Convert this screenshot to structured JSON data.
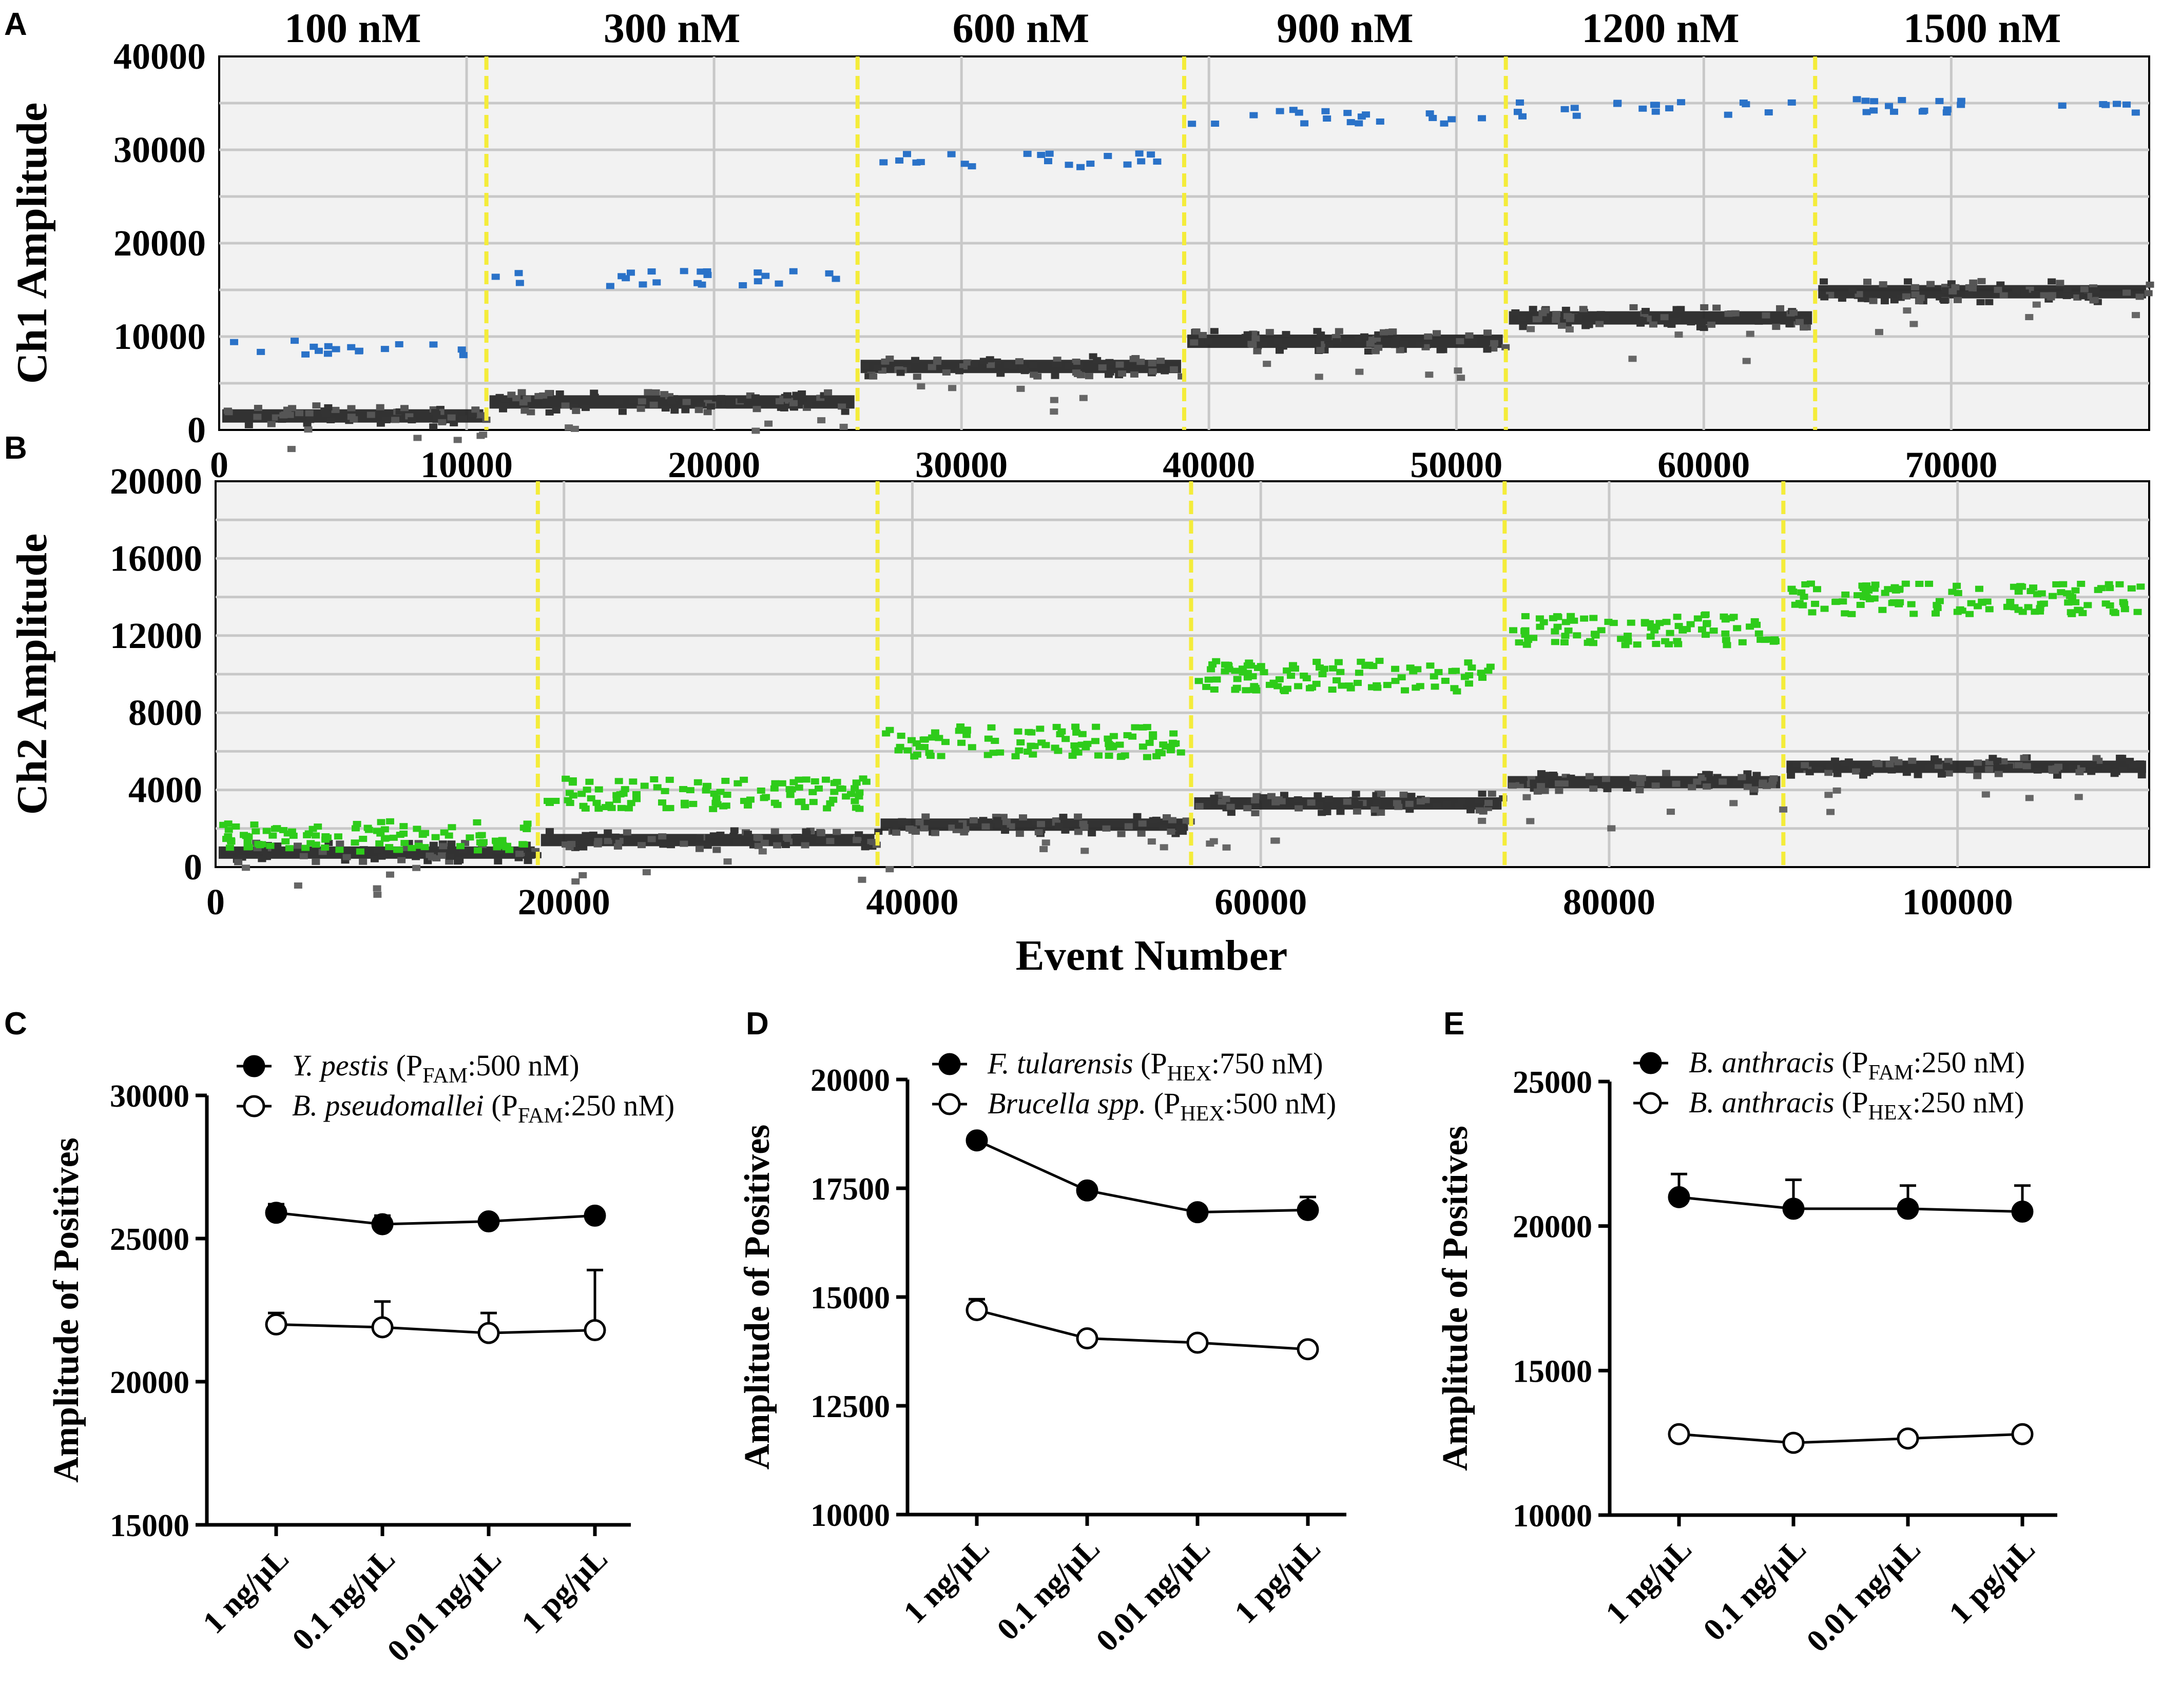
{
  "chart_data": [
    {
      "id": "A",
      "panel_label": "A",
      "type": "scatter",
      "ylabel": "Ch1 Amplitude",
      "xlim": [
        0,
        78000
      ],
      "ylim": [
        0,
        40000
      ],
      "x_ticks": [
        0,
        10000,
        20000,
        30000,
        40000,
        50000,
        60000,
        70000
      ],
      "y_ticks": [
        0,
        10000,
        20000,
        30000,
        40000
      ],
      "dividers": [
        10800,
        25800,
        39000,
        52000,
        64500
      ],
      "segment_titles": [
        "100 nM",
        "300 nM",
        "600 nM",
        "900 nM",
        "1200 nM",
        "1500 nM"
      ],
      "segments": [
        {
          "x_start": 0,
          "x_end": 10800,
          "positive": 8800,
          "negative": 1500
        },
        {
          "x_start": 10800,
          "x_end": 25800,
          "positive": 16200,
          "negative": 3000
        },
        {
          "x_start": 25800,
          "x_end": 39000,
          "positive": 28800,
          "negative": 6800
        },
        {
          "x_start": 39000,
          "x_end": 52000,
          "positive": 33500,
          "negative": 9500
        },
        {
          "x_start": 52000,
          "x_end": 64500,
          "positive": 34300,
          "negative": 12000
        },
        {
          "x_start": 64500,
          "x_end": 78000,
          "positive": 34600,
          "negative": 14800
        }
      ],
      "positive_color": "#2a72c8",
      "negative_color": "#222222"
    },
    {
      "id": "B",
      "panel_label": "B",
      "type": "scatter",
      "ylabel": "Ch2 Amplitude",
      "xlabel": "Event Number",
      "xlim": [
        0,
        111000
      ],
      "ylim": [
        0,
        20000
      ],
      "x_ticks": [
        0,
        20000,
        40000,
        60000,
        80000,
        100000
      ],
      "y_ticks": [
        0,
        4000,
        8000,
        12000,
        16000,
        20000
      ],
      "dividers": [
        18500,
        38000,
        56000,
        74000,
        90000
      ],
      "segments": [
        {
          "x_start": 0,
          "x_end": 18500,
          "positive": 1600,
          "negative": 750
        },
        {
          "x_start": 18500,
          "x_end": 38000,
          "positive": 3800,
          "negative": 1400
        },
        {
          "x_start": 38000,
          "x_end": 56000,
          "positive": 6500,
          "negative": 2200
        },
        {
          "x_start": 56000,
          "x_end": 74000,
          "positive": 9900,
          "negative": 3300
        },
        {
          "x_start": 74000,
          "x_end": 90000,
          "positive": 12300,
          "negative": 4400
        },
        {
          "x_start": 90000,
          "x_end": 111000,
          "positive": 13900,
          "negative": 5200
        }
      ],
      "positive_color": "#2ecc1a",
      "negative_color": "#222222"
    },
    {
      "id": "C",
      "panel_label": "C",
      "type": "line",
      "ylabel": "Amplitude of Positives",
      "categories": [
        "1 ng/μL",
        "0.1 ng/μL",
        "0.01 ng/μL",
        "1 pg/μL"
      ],
      "ylim": [
        15000,
        30000
      ],
      "y_ticks": [
        15000,
        20000,
        25000,
        30000
      ],
      "series": [
        {
          "name": "Y. pestis",
          "probe": "P",
          "probe_sub": "FAM",
          "conc": ":500 nM)",
          "filled": true,
          "values": [
            25900,
            25500,
            25600,
            25800
          ],
          "err": [
            300,
            300,
            0,
            0
          ]
        },
        {
          "name": "B. pseudomallei",
          "probe": "P",
          "probe_sub": "FAM",
          "conc": ":250 nM)",
          "filled": false,
          "values": [
            22000,
            21900,
            21700,
            21800
          ],
          "err": [
            400,
            900,
            700,
            2100
          ]
        }
      ]
    },
    {
      "id": "D",
      "panel_label": "D",
      "type": "line",
      "ylabel": "Amplitude of Positives",
      "categories": [
        "1 ng/μL",
        "0.1 ng/μL",
        "0.01 ng/μL",
        "1 pg/μL"
      ],
      "ylim": [
        10000,
        20000
      ],
      "y_ticks": [
        10000,
        12500,
        15000,
        17500,
        20000
      ],
      "series": [
        {
          "name": "F. tularensis",
          "probe": "P",
          "probe_sub": "HEX",
          "conc": ":750 nM)",
          "filled": true,
          "values": [
            18600,
            17450,
            16950,
            17000
          ],
          "err": [
            0,
            0,
            0,
            300
          ]
        },
        {
          "name": "Brucella spp.",
          "probe": "P",
          "probe_sub": "HEX",
          "conc": ":500 nM)",
          "filled": false,
          "values": [
            14700,
            14050,
            13950,
            13800
          ],
          "err": [
            250,
            0,
            0,
            0
          ]
        }
      ]
    },
    {
      "id": "E",
      "panel_label": "E",
      "type": "line",
      "ylabel": "Amplitude of Positives",
      "categories": [
        "1 ng/μL",
        "0.1 ng/μL",
        "0.01 ng/μL",
        "1 pg/μL"
      ],
      "ylim": [
        10000,
        25000
      ],
      "y_ticks": [
        10000,
        15000,
        20000,
        25000
      ],
      "series": [
        {
          "name": "B. anthracis",
          "probe": "P",
          "probe_sub": "FAM",
          "conc": ":250 nM)",
          "filled": true,
          "values": [
            21000,
            20600,
            20600,
            20500
          ],
          "err": [
            800,
            1000,
            800,
            900
          ]
        },
        {
          "name": "B. anthracis",
          "probe": "P",
          "probe_sub": "HEX",
          "conc": ":250 nM)",
          "filled": false,
          "values": [
            12800,
            12500,
            12650,
            12800
          ],
          "err": [
            0,
            0,
            0,
            0
          ]
        }
      ]
    }
  ]
}
